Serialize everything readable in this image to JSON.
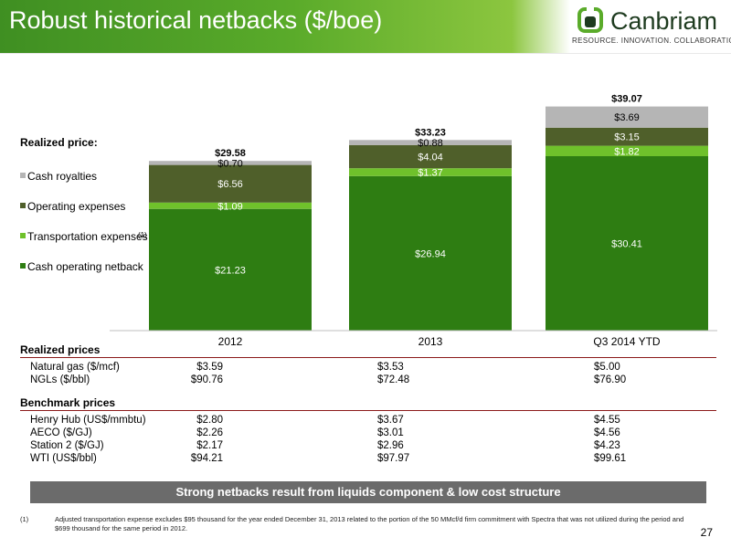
{
  "header": {
    "title": "Robust historical netbacks ($/boe)",
    "logo_name": "Canbriam",
    "logo_tagline": "RESOURCE. INNOVATION. COLLABORATION."
  },
  "colors": {
    "cash_operating_netback": "#2e7d12",
    "transportation_expenses": "#6fc12b",
    "operating_expenses": "#4f5f2a",
    "cash_royalties": "#b5b5b5",
    "rule": "#8b1a1a",
    "banner": "#6b6b6b"
  },
  "chart_data": {
    "type": "bar",
    "stacked": true,
    "categories": [
      "2012",
      "2013",
      "Q3 2014 YTD"
    ],
    "legend_title": "Realized price:",
    "legend_position": "left",
    "series": [
      {
        "name": "Cash operating netback",
        "values": [
          21.23,
          26.94,
          30.41
        ],
        "labels": [
          "$21.23",
          "$26.94",
          "$30.41"
        ]
      },
      {
        "name": "Transportation expenses",
        "footnote_ref": "(1)",
        "values": [
          1.09,
          1.37,
          1.82
        ],
        "labels": [
          "$1.09",
          "$1.37",
          "$1.82"
        ]
      },
      {
        "name": "Operating expenses",
        "values": [
          6.56,
          4.04,
          3.15
        ],
        "labels": [
          "$6.56",
          "$4.04",
          "$3.15"
        ]
      },
      {
        "name": "Cash royalties",
        "values": [
          0.7,
          0.88,
          3.69
        ],
        "labels": [
          "$0.70",
          "$0.88",
          "$3.69"
        ]
      }
    ],
    "totals": [
      "$29.58",
      "$33.23",
      "$39.07"
    ],
    "ylim": [
      0,
      40
    ],
    "grid": false
  },
  "tables": {
    "realized": {
      "title": "Realized prices",
      "rows": [
        {
          "label": "Natural gas ($/mcf)",
          "values": [
            "$3.59",
            "$3.53",
            "$5.00"
          ]
        },
        {
          "label": "NGLs ($/bbl)",
          "values": [
            "$90.76",
            "$72.48",
            "$76.90"
          ]
        }
      ]
    },
    "benchmark": {
      "title": "Benchmark prices",
      "rows": [
        {
          "label": "Henry Hub (US$/mmbtu)",
          "values": [
            "$2.80",
            "$3.67",
            "$4.55"
          ]
        },
        {
          "label": "AECO ($/GJ)",
          "values": [
            "$2.26",
            "$3.01",
            "$4.56"
          ]
        },
        {
          "label": "Station 2 ($/GJ)",
          "values": [
            "$2.17",
            "$2.96",
            "$4.23"
          ]
        },
        {
          "label": "WTI (US$/bbl)",
          "values": [
            "$94.21",
            "$97.97",
            "$99.61"
          ]
        }
      ]
    }
  },
  "banner": "Strong netbacks result from liquids component & low cost structure",
  "footnote": {
    "mark": "(1)",
    "text": "Adjusted transportation expense excludes $95 thousand for the year ended December 31, 2013 related to the portion of the 50 MMcf/d firm commitment with Spectra that was not utilized during the period and $699 thousand for the same period in 2012."
  },
  "page_number": "27"
}
